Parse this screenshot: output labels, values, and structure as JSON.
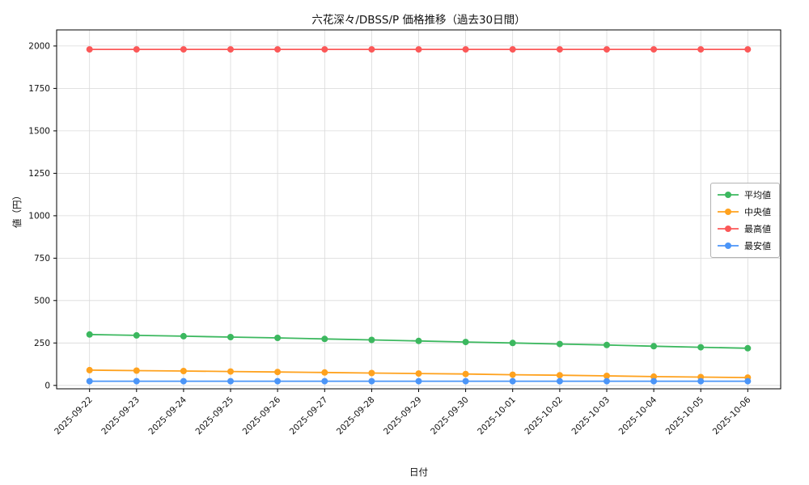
{
  "chart_data": {
    "type": "line",
    "title": "六花深々/DBSS/P 価格推移（過去30日間）",
    "xlabel": "日付",
    "ylabel": "値（円）",
    "categories": [
      "2025-09-22",
      "2025-09-23",
      "2025-09-24",
      "2025-09-25",
      "2025-09-26",
      "2025-09-27",
      "2025-09-28",
      "2025-09-29",
      "2025-09-30",
      "2025-10-01",
      "2025-10-02",
      "2025-10-03",
      "2025-10-04",
      "2025-10-05",
      "2025-10-06"
    ],
    "series": [
      {
        "id": "average",
        "name": "平均値",
        "color": "#3cb85f",
        "values": [
          300,
          295,
          290,
          285,
          280,
          274,
          268,
          262,
          256,
          250,
          244,
          238,
          231,
          225,
          219
        ]
      },
      {
        "id": "median",
        "name": "中央値",
        "color": "#ffa21e",
        "values": [
          90,
          87,
          85,
          82,
          79,
          76,
          73,
          70,
          67,
          63,
          60,
          56,
          52,
          49,
          46
        ]
      },
      {
        "id": "max",
        "name": "最高値",
        "color": "#fb5858",
        "values": [
          1980,
          1980,
          1980,
          1980,
          1980,
          1980,
          1980,
          1980,
          1980,
          1980,
          1980,
          1980,
          1980,
          1980,
          1980
        ]
      },
      {
        "id": "min",
        "name": "最安値",
        "color": "#4b95f8",
        "values": [
          25,
          25,
          25,
          25,
          25,
          25,
          25,
          25,
          25,
          25,
          25,
          25,
          25,
          25,
          25
        ]
      }
    ],
    "yticks": [
      0,
      250,
      500,
      750,
      1000,
      1250,
      1500,
      1750,
      2000
    ],
    "ylim": [
      -20,
      2095
    ],
    "x_margin": 0.7,
    "grid": true,
    "legend": {
      "position": "right-middle",
      "entries": [
        "平均値",
        "中央値",
        "最高値",
        "最安値"
      ]
    },
    "marker": "circle",
    "marker_radius": 4,
    "line_width": 1.8
  }
}
